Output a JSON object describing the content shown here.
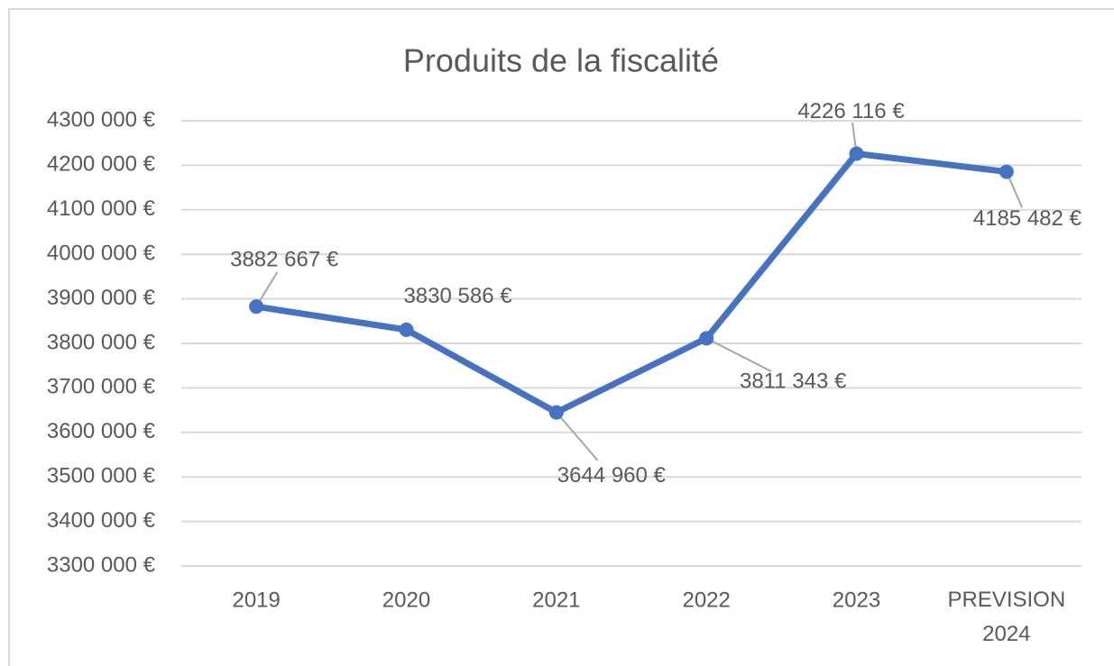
{
  "chart_data": {
    "type": "line",
    "title": "Produits de la fiscalité",
    "categories": [
      "2019",
      "2020",
      "2021",
      "2022",
      "2023",
      "PREVISION 2024"
    ],
    "series": [
      {
        "color": "#4472c4",
        "values": [
          3882667,
          3830586,
          3644960,
          3811343,
          4226116,
          4185482
        ],
        "value_labels": [
          "3882 667 €",
          "3830 586 €",
          "3644 960 €",
          "3811 343 €",
          "4226 116 €",
          "4185 482 €"
        ]
      }
    ],
    "ylim": [
      3300000,
      4300000
    ],
    "yticks": [
      {
        "value": 3300000,
        "label": "3300 000 €"
      },
      {
        "value": 3400000,
        "label": "3400 000 €"
      },
      {
        "value": 3500000,
        "label": "3500 000 €"
      },
      {
        "value": 3600000,
        "label": "3600 000 €"
      },
      {
        "value": 3700000,
        "label": "3700 000 €"
      },
      {
        "value": 3800000,
        "label": "3800 000 €"
      },
      {
        "value": 3900000,
        "label": "3900 000 €"
      },
      {
        "value": 4000000,
        "label": "4000 000 €"
      },
      {
        "value": 4100000,
        "label": "4100 000 €"
      },
      {
        "value": 4200000,
        "label": "4200 000 €"
      },
      {
        "value": 4300000,
        "label": "4300 000 €"
      }
    ],
    "grid": true
  }
}
